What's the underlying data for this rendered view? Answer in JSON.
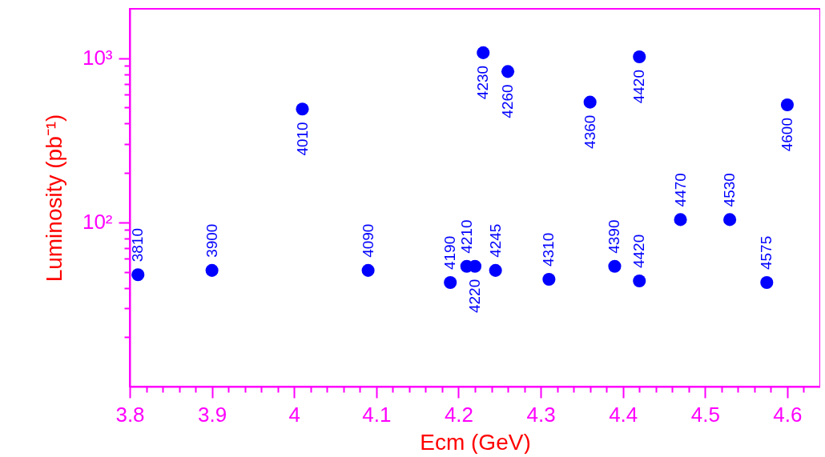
{
  "chart_data": {
    "type": "scatter",
    "xlabel": "Ecm (GeV)",
    "ylabel": "Luminosity (pb⁻¹)",
    "log": "y",
    "grid": false,
    "marker": "circle",
    "x": [
      3.81,
      3.9,
      4.01,
      4.09,
      4.19,
      4.21,
      4.22,
      4.23,
      4.245,
      4.26,
      4.31,
      4.36,
      4.39,
      4.42,
      4.42,
      4.47,
      4.53,
      4.575,
      4.6
    ],
    "series": [
      {
        "color": "#0000ff",
        "values": [
          48,
          51,
          490,
          51,
          43,
          54,
          54,
          1080,
          51,
          830,
          45,
          540,
          54,
          44,
          1020,
          104,
          104,
          43,
          520
        ]
      }
    ],
    "annotations": [
      {
        "text": "3810",
        "x": 3.81,
        "y": 48
      },
      {
        "text": "3900",
        "x": 3.9,
        "y": 51
      },
      {
        "text": "4010",
        "x": 4.01,
        "y": 490
      },
      {
        "text": "4090",
        "x": 4.09,
        "y": 51
      },
      {
        "text": "4190",
        "x": 4.19,
        "y": 43
      },
      {
        "text": "4210",
        "x": 4.21,
        "y": 54
      },
      {
        "text": "4220",
        "x": 4.22,
        "y": 54
      },
      {
        "text": "4230",
        "x": 4.23,
        "y": 1080
      },
      {
        "text": "4245",
        "x": 4.245,
        "y": 51
      },
      {
        "text": "4260",
        "x": 4.26,
        "y": 830
      },
      {
        "text": "4310",
        "x": 4.31,
        "y": 45
      },
      {
        "text": "4360",
        "x": 4.36,
        "y": 540
      },
      {
        "text": "4390",
        "x": 4.39,
        "y": 54
      },
      {
        "text": "4420",
        "x": 4.42,
        "y": 44
      },
      {
        "text": "4420",
        "x": 4.42,
        "y": 1020
      },
      {
        "text": "4470",
        "x": 4.47,
        "y": 104
      },
      {
        "text": "4530",
        "x": 4.53,
        "y": 104
      },
      {
        "text": "4575",
        "x": 4.575,
        "y": 43
      },
      {
        "text": "4600",
        "x": 4.6,
        "y": 520
      }
    ],
    "xlim": [
      3.8,
      4.64
    ],
    "ylim": [
      10,
      2000
    ],
    "xticks": [
      3.8,
      {
        "value": 3.82,
        "label": null
      },
      {
        "value": 3.84,
        "label": null
      },
      {
        "value": 3.86,
        "label": null
      },
      {
        "value": 3.88,
        "label": null
      },
      3.9,
      {
        "value": 3.92,
        "label": null
      },
      {
        "value": 3.94,
        "label": null
      },
      {
        "value": 3.96,
        "label": null
      },
      {
        "value": 3.98,
        "label": null
      },
      4,
      {
        "value": 4.02,
        "label": null
      },
      {
        "value": 4.04,
        "label": null
      },
      {
        "value": 4.06,
        "label": null
      },
      {
        "value": 4.08,
        "label": null
      },
      4.1,
      {
        "value": 4.12,
        "label": null
      },
      {
        "value": 4.14,
        "label": null
      },
      {
        "value": 4.16,
        "label": null
      },
      {
        "value": 4.18,
        "label": null
      },
      4.2,
      {
        "value": 4.22,
        "label": null
      },
      {
        "value": 4.24,
        "label": null
      },
      {
        "value": 4.26,
        "label": null
      },
      {
        "value": 4.28,
        "label": null
      },
      4.3,
      {
        "value": 4.32,
        "label": null
      },
      {
        "value": 4.34,
        "label": null
      },
      {
        "value": 4.36,
        "label": null
      },
      {
        "value": 4.38,
        "label": null
      },
      4.4,
      {
        "value": 4.42,
        "label": null
      },
      {
        "value": 4.44,
        "label": null
      },
      {
        "value": 4.46,
        "label": null
      },
      {
        "value": 4.48,
        "label": null
      },
      4.5,
      {
        "value": 4.52,
        "label": null
      },
      {
        "value": 4.54,
        "label": null
      },
      {
        "value": 4.56,
        "label": null
      },
      {
        "value": 4.58,
        "label": null
      },
      4.6,
      {
        "value": 4.62,
        "label": null
      }
    ],
    "yticks": [
      {
        "value": 20,
        "label": null
      },
      {
        "value": 30,
        "label": null
      },
      {
        "value": 40,
        "label": null
      },
      {
        "value": 50,
        "label": null
      },
      {
        "value": 60,
        "label": null
      },
      {
        "value": 70,
        "label": null
      },
      {
        "value": 80,
        "label": null
      },
      {
        "value": 90,
        "label": null
      },
      {
        "value": 100,
        "label": "10²"
      },
      {
        "value": 200,
        "label": null
      },
      {
        "value": 300,
        "label": null
      },
      {
        "value": 400,
        "label": null
      },
      {
        "value": 500,
        "label": null
      },
      {
        "value": 600,
        "label": null
      },
      {
        "value": 700,
        "label": null
      },
      {
        "value": 800,
        "label": null
      },
      {
        "value": 900,
        "label": null
      },
      {
        "value": 1000,
        "label": "10³"
      }
    ]
  }
}
